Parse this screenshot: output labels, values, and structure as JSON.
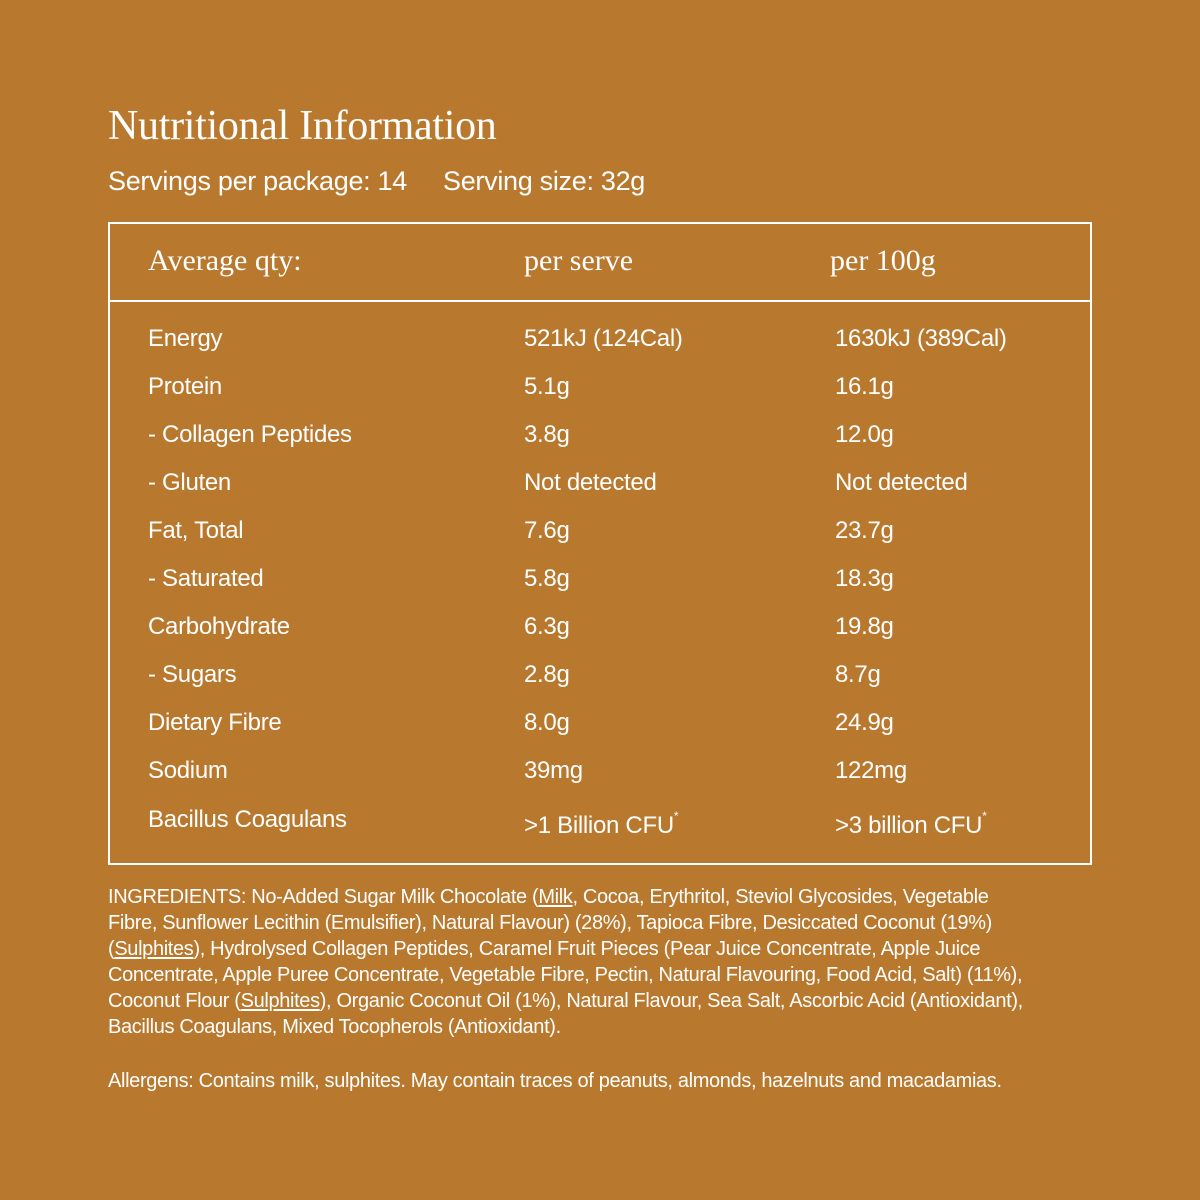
{
  "title": "Nutritional Information",
  "servings_per_package": "Servings per package: 14",
  "serving_size": "Serving size: 32g",
  "table": {
    "headers": [
      "Average qty:",
      "per serve",
      "per 100g"
    ],
    "rows": [
      {
        "name": "Energy",
        "per_serve": "521kJ (124Cal)",
        "per_100g": "1630kJ (389Cal)"
      },
      {
        "name": "Protein",
        "per_serve": "5.1g",
        "per_100g": "16.1g"
      },
      {
        "name": "- Collagen Peptides",
        "per_serve": "3.8g",
        "per_100g": "12.0g"
      },
      {
        "name": "- Gluten",
        "per_serve": "Not detected",
        "per_100g": "Not detected"
      },
      {
        "name": "Fat, Total",
        "per_serve": "7.6g",
        "per_100g": "23.7g"
      },
      {
        "name": "- Saturated",
        "per_serve": "5.8g",
        "per_100g": "18.3g"
      },
      {
        "name": "Carbohydrate",
        "per_serve": "6.3g",
        "per_100g": "19.8g"
      },
      {
        "name": "- Sugars",
        "per_serve": "2.8g",
        "per_100g": "8.7g"
      },
      {
        "name": "Dietary Fibre",
        "per_serve": "8.0g",
        "per_100g": "24.9g"
      },
      {
        "name": "Sodium",
        "per_serve": "39mg",
        "per_100g": "122mg"
      },
      {
        "name": "Bacillus Coagulans",
        "per_serve": ">1 Billion CFU",
        "per_100g": ">3 billion CFU"
      }
    ],
    "footnote_mark": "*"
  },
  "ingredients": {
    "l1a": "INGREDIENTS: No-Added Sugar Milk Chocolate (",
    "l1u": "Milk",
    "l1b": ", Cocoa, Erythritol, Steviol Glycosides, Vegetable",
    "l2": "Fibre, Sunflower Lecithin (Emulsifier), Natural Flavour) (28%), Tapioca Fibre, Desiccated Coconut (19%)",
    "l3a": "(",
    "l3u": "Sulphites",
    "l3b": "), Hydrolysed Collagen Peptides, Caramel Fruit Pieces (Pear Juice Concentrate, Apple Juice",
    "l4": "Concentrate, Apple Puree Concentrate, Vegetable Fibre, Pectin, Natural Flavouring, Food Acid, Salt) (11%),",
    "l5a": "Coconut Flour (",
    "l5u": "Sulphites",
    "l5b": "), Organic Coconut Oil (1%), Natural Flavour, Sea Salt, Ascorbic Acid (Antioxidant),",
    "l6": "Bacillus Coagulans, Mixed Tocopherols (Antioxidant)."
  },
  "allergens": "Allergens: Contains milk, sulphites. May contain traces of peanuts, almonds, hazelnuts and macadamias."
}
